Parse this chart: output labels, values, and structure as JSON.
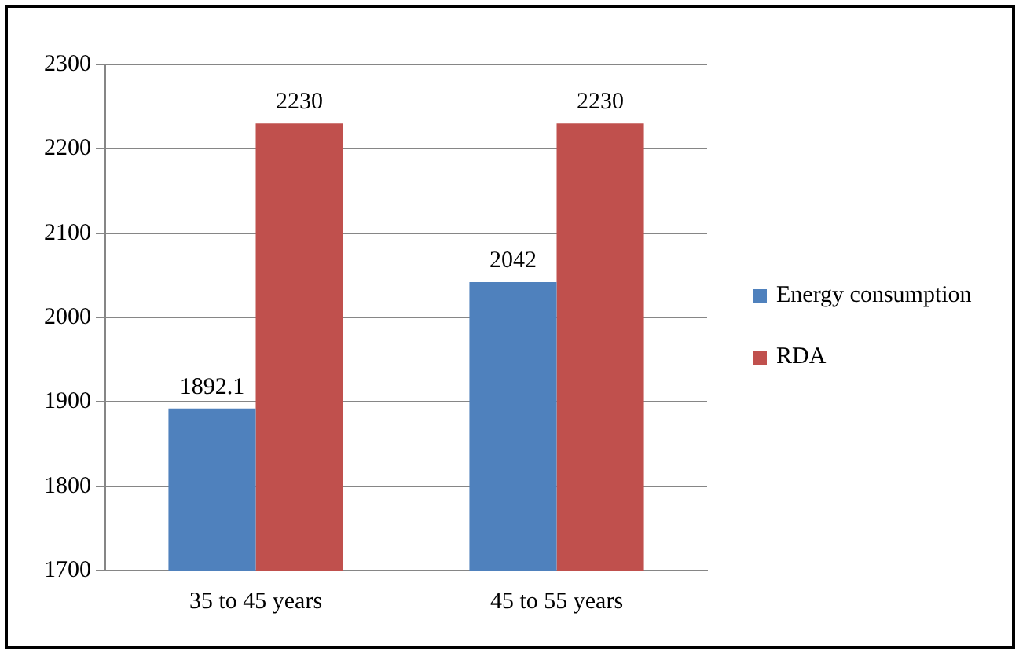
{
  "chart_data": {
    "type": "bar",
    "categories": [
      "35 to 45 years",
      "45 to 55 years"
    ],
    "series": [
      {
        "name": "Energy consumption",
        "color": "#4f81bd",
        "values": [
          1892.1,
          2042
        ]
      },
      {
        "name": "RDA",
        "color": "#c0504d",
        "values": [
          2230,
          2230
        ]
      }
    ],
    "ylim": [
      1700,
      2300
    ],
    "yticks": [
      1700,
      1800,
      1900,
      2000,
      2100,
      2200,
      2300
    ],
    "grid": "y",
    "legend": "right",
    "data_labels": true
  }
}
